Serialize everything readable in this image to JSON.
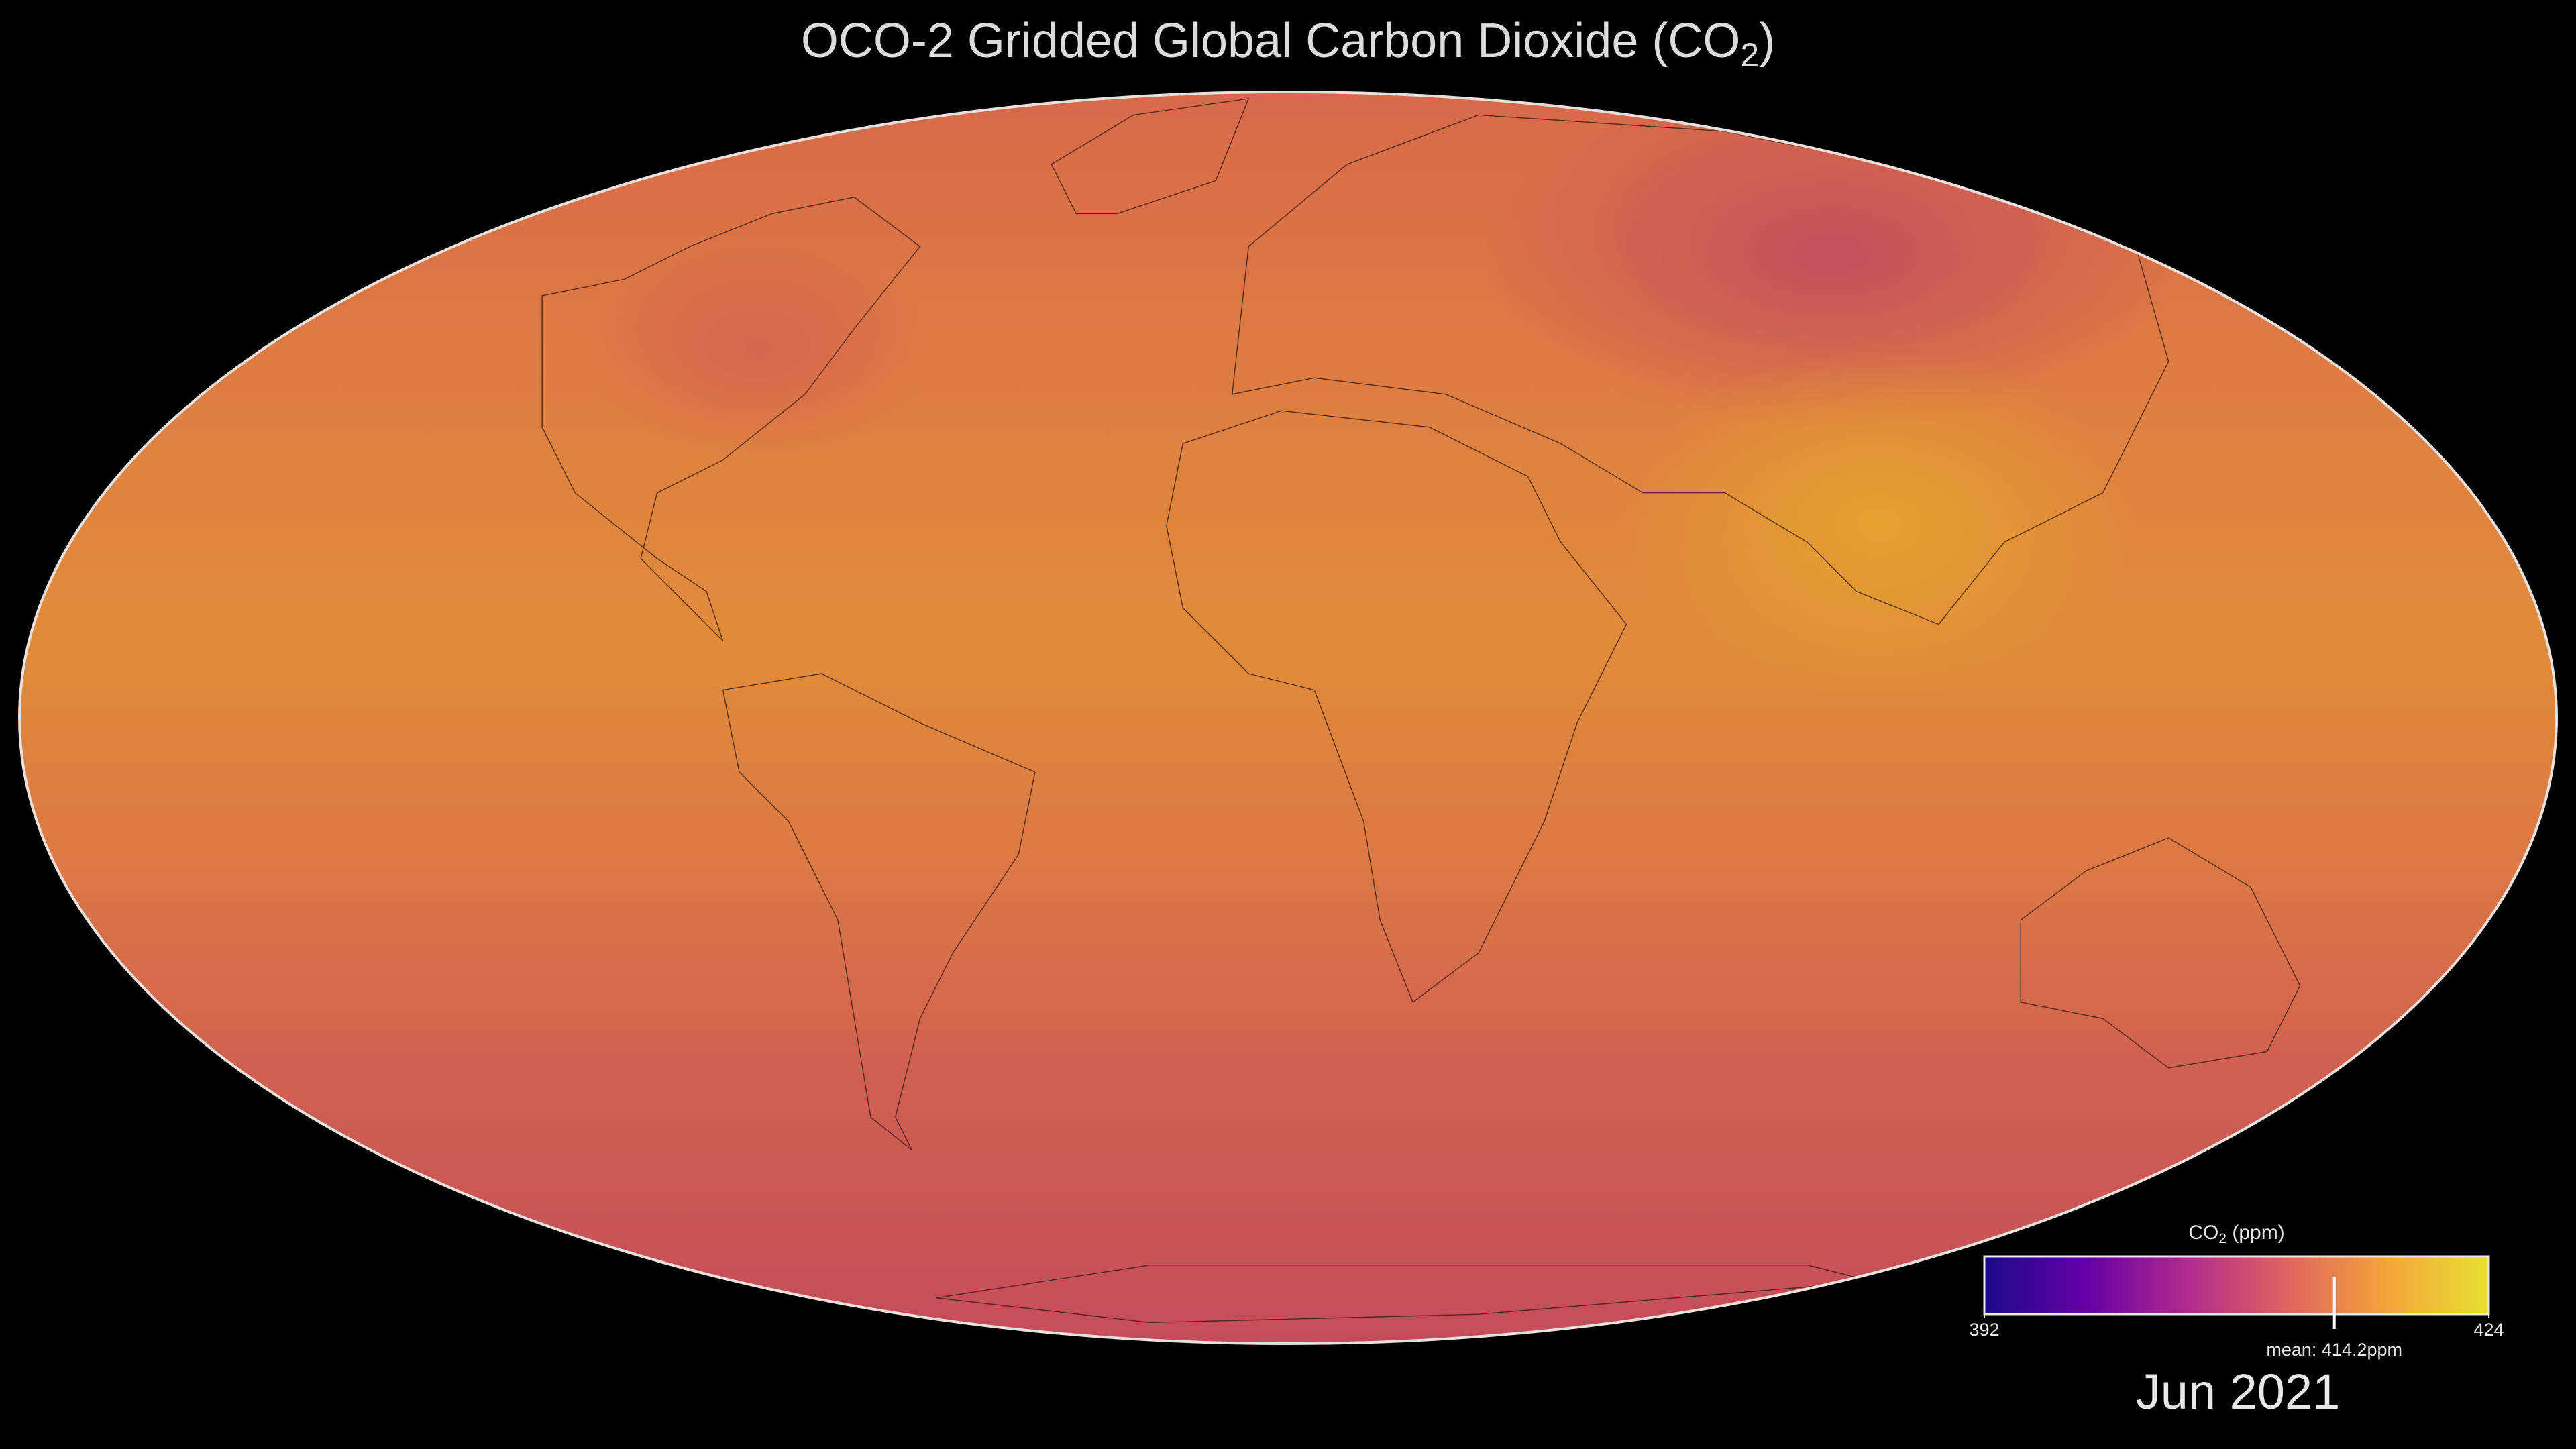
{
  "header": {
    "title": [
      "OCO-2 Gridded Global Carbon Dioxide (CO",
      "2",
      ")"
    ]
  },
  "legend": {
    "title": [
      "CO",
      "2",
      " (ppm)"
    ],
    "ticks": [
      392,
      424
    ],
    "colors": [
      "#1c0a8a",
      "#6400a6",
      "#b02a8f",
      "#df6460",
      "#f5a53a",
      "#e6e032"
    ],
    "mean": {
      "value": 414.2,
      "label": "mean: 414.2ppm"
    }
  },
  "date": "Jun 2021"
}
